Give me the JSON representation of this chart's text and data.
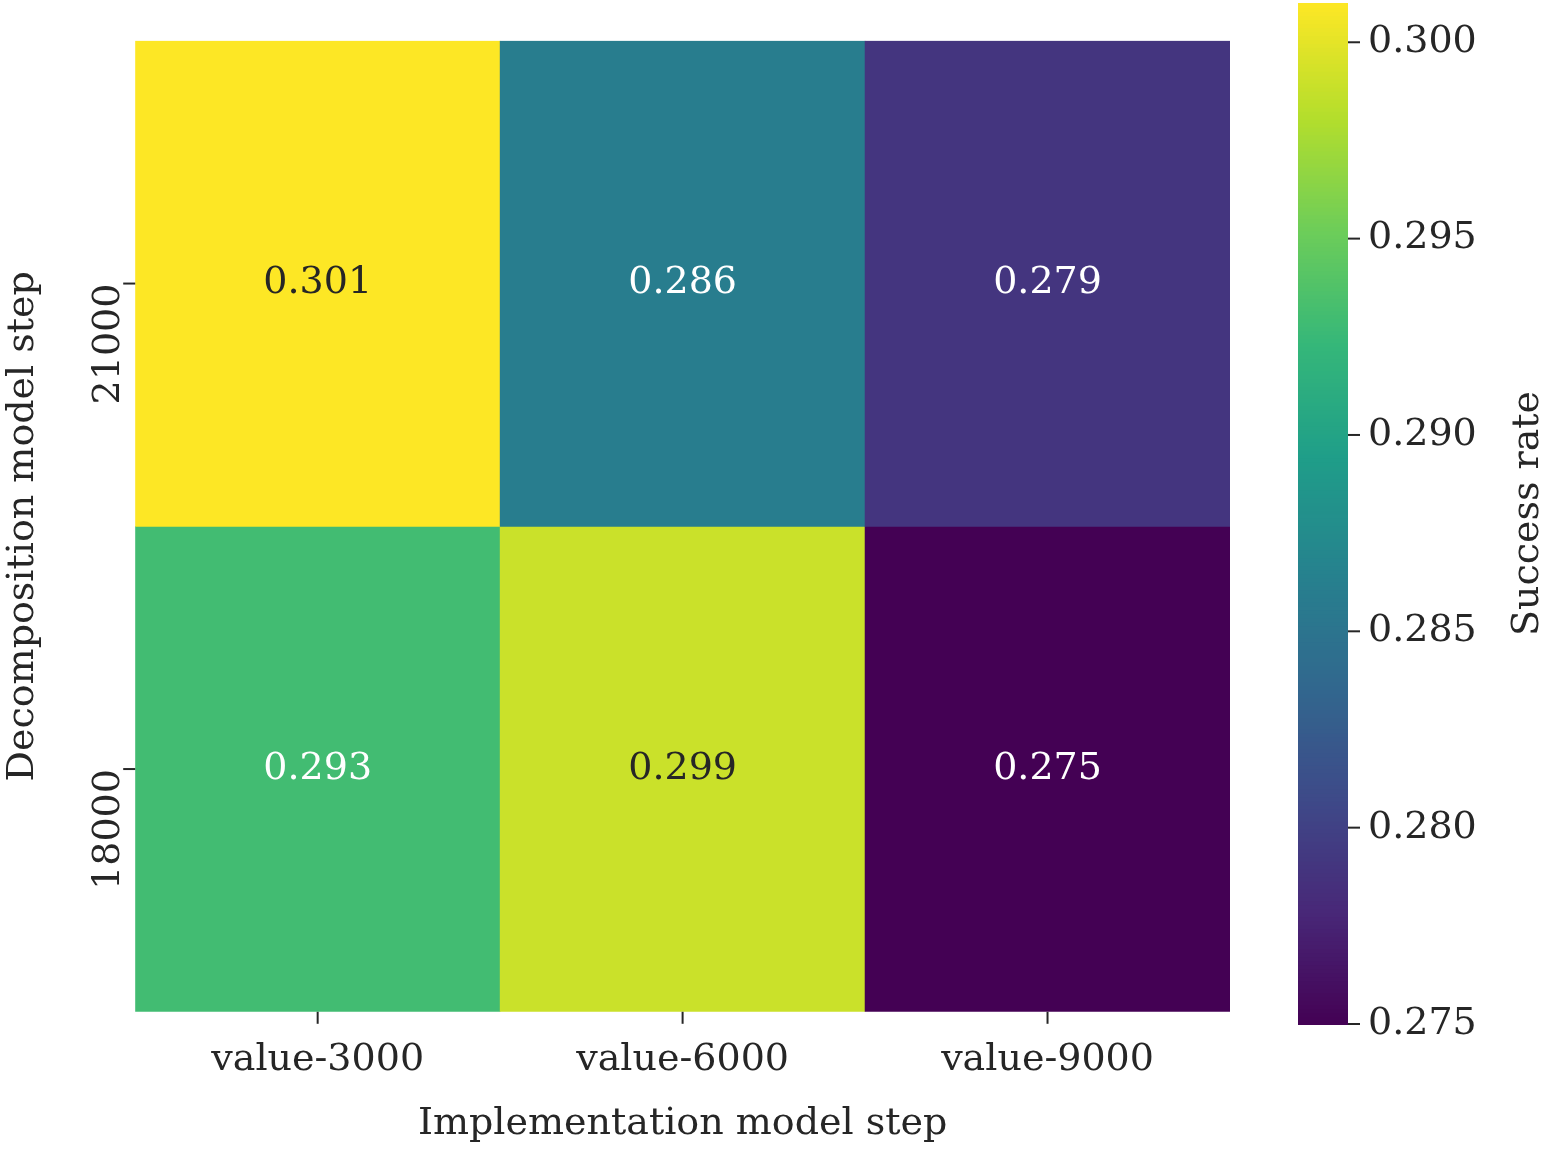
{
  "chart_data": {
    "type": "heatmap",
    "xlabel": "Implementation model step",
    "ylabel": "Decomposition model step",
    "clabel": "Success rate",
    "categories": [
      "value-3000",
      "value-6000",
      "value-9000"
    ],
    "y_categories": [
      "21000",
      "18000"
    ],
    "cells": [
      [
        0.301,
        0.286,
        0.279
      ],
      [
        0.293,
        0.299,
        0.275
      ]
    ],
    "clim": [
      0.275,
      0.301
    ],
    "cticks": [
      {
        "value": 0.275,
        "label": "0.275"
      },
      {
        "value": 0.28,
        "label": "0.280"
      },
      {
        "value": 0.285,
        "label": "0.285"
      },
      {
        "value": 0.29,
        "label": "0.290"
      },
      {
        "value": 0.295,
        "label": "0.295"
      },
      {
        "value": 0.3,
        "label": "0.300"
      }
    ],
    "data_labels": true
  }
}
